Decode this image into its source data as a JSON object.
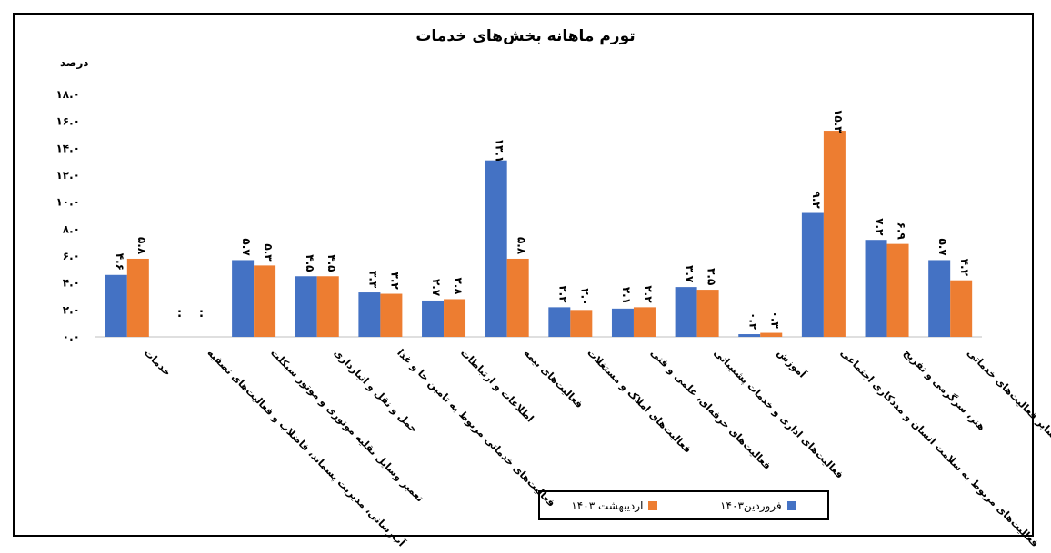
{
  "chart_data": {
    "type": "bar",
    "title": "تورم ماهانه بخش‌های خدمات",
    "ylabel": "درصد",
    "ylim": [
      0,
      18
    ],
    "yticks": [
      "۰.۰",
      "۲.۰",
      "۴.۰",
      "۶.۰",
      "۸.۰",
      "۱۰.۰",
      "۱۲.۰",
      "۱۴.۰",
      "۱۶.۰",
      "۱۸.۰"
    ],
    "categories": [
      "خدمات",
      "آب‌رسانی، مدیریت پسماند، فاضلاب و فعالیت‌های تصفیه",
      "تعمیر وسایل نقلیه موتوری و موتور سیکلت",
      "حمل و نقل و انبارداری",
      "فعالیت‌های خدماتی مربوط به تامین جا و غذا",
      "اطلاعات و ارتباطات",
      "فعالیت‌های بیمه",
      "فعالیت‌های املاک و مستغلات",
      "فعالیت‌های حرفه‌ای، علمی و فنی",
      "فعالیت‌های اداری و خدمات پشتیبانی",
      "آموزش",
      "فعالیت‌های مربوط به سلامت انسان و مددکاری اجتماعی",
      "هنر، سرگرمی و تفریح",
      "سایر فعالیت‌های خدماتی"
    ],
    "series": [
      {
        "name": "فروردین۱۴۰۳",
        "color": "#4472C4",
        "values": [
          4.6,
          null,
          5.7,
          4.5,
          3.3,
          2.7,
          13.1,
          2.2,
          2.1,
          3.7,
          0.2,
          9.2,
          7.2,
          5.7
        ],
        "labels": [
          "۴.۶",
          ":",
          "۵.۷",
          "۴.۵",
          "۳.۳",
          "۲.۷",
          "۱۳.۱",
          "۲.۲",
          "۲.۱",
          "۳.۷",
          "۰.۲",
          "۹.۲",
          "۷.۲",
          "۵.۷"
        ]
      },
      {
        "name": "اردیبهشت ۱۴۰۳",
        "color": "#ED7D31",
        "values": [
          5.8,
          null,
          5.3,
          4.5,
          3.2,
          2.8,
          5.8,
          2.0,
          2.2,
          3.5,
          0.3,
          15.3,
          6.9,
          4.2
        ],
        "labels": [
          "۵.۸",
          ":",
          "۵.۳",
          "۴.۵",
          "۳.۲",
          "۲.۸",
          "۵.۸",
          "۲.۰",
          "۲.۲",
          "۳.۵",
          "۰.۳",
          "۱۵.۳",
          "۶.۹",
          "۴.۲"
        ]
      }
    ],
    "legend": "bottom"
  }
}
